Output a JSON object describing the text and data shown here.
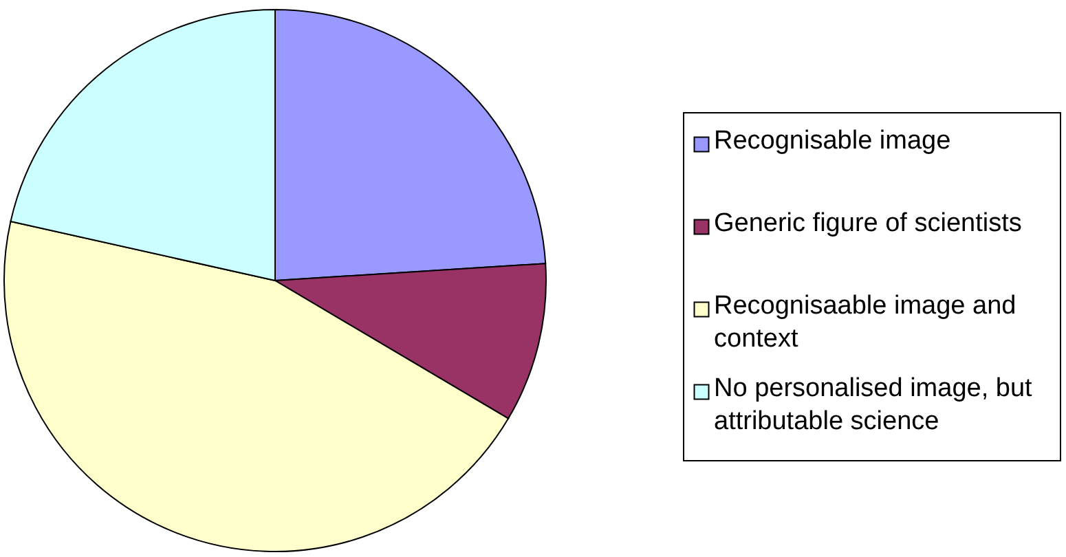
{
  "chart_data": {
    "type": "pie",
    "categories": [
      "Recognisable image",
      "Generic figure of scientists",
      "Recognisaable image and context",
      "No personalised image, but attributable science"
    ],
    "values": [
      24,
      9.5,
      45,
      21.5
    ],
    "colors": [
      "#9999ff",
      "#993366",
      "#ffffcc",
      "#ccffff"
    ],
    "legend": "right"
  }
}
